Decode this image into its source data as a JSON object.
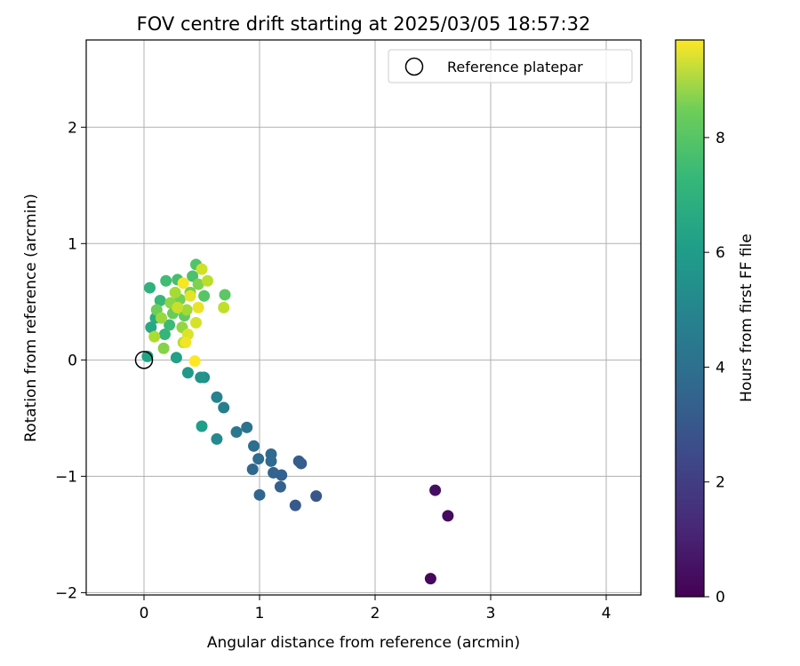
{
  "chart_data": {
    "type": "scatter",
    "title": "FOV centre drift starting at 2025/03/05 18:57:32",
    "xlabel": "Angular distance from reference (arcmin)",
    "ylabel": "Rotation from reference (arcmin)",
    "xlim": [
      -0.5,
      4.3
    ],
    "ylim": [
      -2.02,
      2.75
    ],
    "xticks": [
      0,
      1,
      2,
      3,
      4
    ],
    "yticks": [
      -2,
      -1,
      0,
      1,
      2
    ],
    "xtick_labels": [
      "0",
      "1",
      "2",
      "3",
      "4"
    ],
    "ytick_labels": [
      "−2",
      "−1",
      "0",
      "1",
      "2"
    ],
    "grid": true,
    "legend": {
      "position": "top-right",
      "entries": [
        "Reference platepar"
      ]
    },
    "colorbar": {
      "label": "Hours from first FF file",
      "colormap": "viridis",
      "range": [
        0,
        9.7
      ],
      "ticks": [
        0,
        2,
        4,
        6,
        8
      ],
      "tick_labels": [
        "0",
        "2",
        "4",
        "6",
        "8"
      ]
    },
    "reference_point": {
      "x": 0,
      "y": 0,
      "label": "Reference platepar"
    },
    "points": [
      {
        "x": 2.48,
        "y": -1.88,
        "h": 0.2
      },
      {
        "x": 2.63,
        "y": -1.34,
        "h": 0.3
      },
      {
        "x": 2.52,
        "y": -1.12,
        "h": 0.4
      },
      {
        "x": 1.49,
        "y": -1.17,
        "h": 2.6
      },
      {
        "x": 1.31,
        "y": -1.25,
        "h": 2.7
      },
      {
        "x": 1.36,
        "y": -0.89,
        "h": 2.8
      },
      {
        "x": 1.34,
        "y": -0.87,
        "h": 2.9
      },
      {
        "x": 1.18,
        "y": -1.09,
        "h": 3.0
      },
      {
        "x": 1.19,
        "y": -0.99,
        "h": 3.0
      },
      {
        "x": 1.12,
        "y": -0.97,
        "h": 3.1
      },
      {
        "x": 1.0,
        "y": -1.16,
        "h": 3.2
      },
      {
        "x": 0.94,
        "y": -0.94,
        "h": 3.2
      },
      {
        "x": 1.1,
        "y": -0.87,
        "h": 3.3
      },
      {
        "x": 1.1,
        "y": -0.81,
        "h": 3.3
      },
      {
        "x": 0.99,
        "y": -0.85,
        "h": 3.4
      },
      {
        "x": 0.95,
        "y": -0.74,
        "h": 3.5
      },
      {
        "x": 0.89,
        "y": -0.58,
        "h": 3.7
      },
      {
        "x": 0.8,
        "y": -0.62,
        "h": 3.9
      },
      {
        "x": 0.69,
        "y": -0.41,
        "h": 4.1
      },
      {
        "x": 0.63,
        "y": -0.32,
        "h": 4.3
      },
      {
        "x": 0.63,
        "y": -0.68,
        "h": 4.6
      },
      {
        "x": 0.52,
        "y": -0.15,
        "h": 4.8
      },
      {
        "x": 0.49,
        "y": -0.15,
        "h": 5.0
      },
      {
        "x": 0.38,
        "y": -0.11,
        "h": 5.2
      },
      {
        "x": 0.5,
        "y": -0.57,
        "h": 5.4
      },
      {
        "x": 0.28,
        "y": 0.02,
        "h": 5.5
      },
      {
        "x": 0.03,
        "y": 0.03,
        "h": 5.6
      },
      {
        "x": 0.06,
        "y": 0.28,
        "h": 5.8
      },
      {
        "x": 0.1,
        "y": 0.36,
        "h": 6.0
      },
      {
        "x": 0.05,
        "y": 0.62,
        "h": 6.2
      },
      {
        "x": 0.18,
        "y": 0.22,
        "h": 6.4
      },
      {
        "x": 0.14,
        "y": 0.51,
        "h": 6.5
      },
      {
        "x": 0.22,
        "y": 0.3,
        "h": 6.6
      },
      {
        "x": 0.19,
        "y": 0.68,
        "h": 6.7
      },
      {
        "x": 0.29,
        "y": 0.69,
        "h": 6.8
      },
      {
        "x": 0.42,
        "y": 0.72,
        "h": 6.9
      },
      {
        "x": 0.45,
        "y": 0.82,
        "h": 7.0
      },
      {
        "x": 0.52,
        "y": 0.55,
        "h": 7.1
      },
      {
        "x": 0.7,
        "y": 0.56,
        "h": 7.2
      },
      {
        "x": 0.35,
        "y": 0.38,
        "h": 7.3
      },
      {
        "x": 0.25,
        "y": 0.4,
        "h": 7.4
      },
      {
        "x": 0.11,
        "y": 0.43,
        "h": 7.5
      },
      {
        "x": 0.31,
        "y": 0.52,
        "h": 7.6
      },
      {
        "x": 0.4,
        "y": 0.58,
        "h": 7.7
      },
      {
        "x": 0.47,
        "y": 0.65,
        "h": 7.8
      },
      {
        "x": 0.17,
        "y": 0.1,
        "h": 7.9
      },
      {
        "x": 0.23,
        "y": 0.49,
        "h": 8.0
      },
      {
        "x": 0.33,
        "y": 0.28,
        "h": 8.1
      },
      {
        "x": 0.15,
        "y": 0.36,
        "h": 8.2
      },
      {
        "x": 0.37,
        "y": 0.43,
        "h": 8.3
      },
      {
        "x": 0.27,
        "y": 0.58,
        "h": 8.4
      },
      {
        "x": 0.09,
        "y": 0.2,
        "h": 8.5
      },
      {
        "x": 0.34,
        "y": 0.15,
        "h": 8.6
      },
      {
        "x": 0.55,
        "y": 0.68,
        "h": 8.7
      },
      {
        "x": 0.69,
        "y": 0.45,
        "h": 8.8
      },
      {
        "x": 0.29,
        "y": 0.45,
        "h": 8.9
      },
      {
        "x": 0.5,
        "y": 0.78,
        "h": 9.0
      },
      {
        "x": 0.45,
        "y": 0.32,
        "h": 9.1
      },
      {
        "x": 0.38,
        "y": 0.22,
        "h": 9.2
      },
      {
        "x": 0.4,
        "y": 0.55,
        "h": 9.3
      },
      {
        "x": 0.47,
        "y": 0.45,
        "h": 9.4
      },
      {
        "x": 0.36,
        "y": 0.15,
        "h": 9.5
      },
      {
        "x": 0.34,
        "y": 0.66,
        "h": 9.6
      },
      {
        "x": 0.44,
        "y": -0.01,
        "h": 9.7
      }
    ]
  }
}
